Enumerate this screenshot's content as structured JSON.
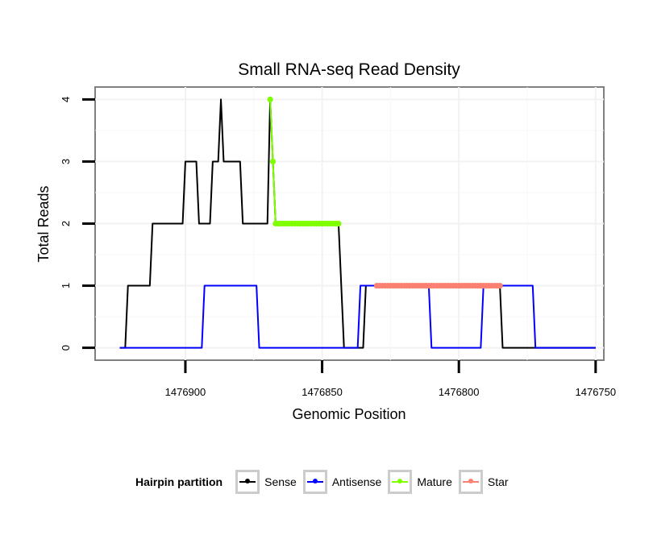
{
  "chart_data": {
    "type": "line",
    "title": "Small RNA-seq Read Density",
    "xlabel": "Genomic Position",
    "ylabel": "Total Reads",
    "xlim": [
      1476933,
      1476747
    ],
    "ylim": [
      -0.2,
      4.2
    ],
    "x_reversed": true,
    "x_ticks": [
      1476900,
      1476850,
      1476800,
      1476750
    ],
    "x_tick_labels": [
      "1476900",
      "1476850",
      "1476800",
      "1476750"
    ],
    "y_ticks": [
      0,
      1,
      2,
      3,
      4
    ],
    "y_tick_labels": [
      "0",
      "1",
      "2",
      "3",
      "4"
    ],
    "grid": true,
    "legend_position": "bottom",
    "legend_title": "Hairpin partition",
    "series": [
      {
        "name": "Sense",
        "color": "#000000",
        "style": "line",
        "points": [
          [
            1476924,
            0
          ],
          [
            1476922,
            0
          ],
          [
            1476921,
            1
          ],
          [
            1476913,
            1
          ],
          [
            1476912,
            2
          ],
          [
            1476901,
            2
          ],
          [
            1476900,
            3
          ],
          [
            1476896,
            3
          ],
          [
            1476895,
            2
          ],
          [
            1476891,
            2
          ],
          [
            1476890,
            3
          ],
          [
            1476888,
            3
          ],
          [
            1476887,
            4
          ],
          [
            1476886,
            3
          ],
          [
            1476880,
            3
          ],
          [
            1476879,
            2
          ],
          [
            1476870,
            2
          ],
          [
            1476869,
            4
          ],
          [
            1476868,
            3
          ],
          [
            1476867,
            2
          ],
          [
            1476844,
            2
          ],
          [
            1476842,
            0
          ],
          [
            1476835,
            0
          ],
          [
            1476834,
            1
          ],
          [
            1476831,
            1
          ],
          [
            1476830,
            1
          ],
          [
            1476785,
            1
          ],
          [
            1476784,
            0
          ],
          [
            1476750,
            0
          ]
        ]
      },
      {
        "name": "Antisense",
        "color": "#0000ff",
        "style": "line",
        "points": [
          [
            1476924,
            0
          ],
          [
            1476894,
            0
          ],
          [
            1476893,
            1
          ],
          [
            1476874,
            1
          ],
          [
            1476873,
            0
          ],
          [
            1476845,
            0
          ],
          [
            1476837,
            0
          ],
          [
            1476836,
            1
          ],
          [
            1476833,
            1
          ],
          [
            1476832,
            1
          ],
          [
            1476811,
            1
          ],
          [
            1476810,
            0
          ],
          [
            1476792,
            0
          ],
          [
            1476791,
            1
          ],
          [
            1476773,
            1
          ],
          [
            1476772,
            0
          ],
          [
            1476750,
            0
          ]
        ]
      },
      {
        "name": "Mature",
        "color": "#7fff00",
        "style": "line-points",
        "points": [
          [
            1476869,
            4
          ],
          [
            1476868,
            3
          ],
          [
            1476867,
            2
          ],
          [
            1476866,
            2
          ],
          [
            1476865,
            2
          ],
          [
            1476864,
            2
          ],
          [
            1476863,
            2
          ],
          [
            1476862,
            2
          ],
          [
            1476861,
            2
          ],
          [
            1476860,
            2
          ],
          [
            1476859,
            2
          ],
          [
            1476858,
            2
          ],
          [
            1476857,
            2
          ],
          [
            1476856,
            2
          ],
          [
            1476855,
            2
          ],
          [
            1476854,
            2
          ],
          [
            1476853,
            2
          ],
          [
            1476852,
            2
          ],
          [
            1476851,
            2
          ],
          [
            1476850,
            2
          ],
          [
            1476849,
            2
          ],
          [
            1476848,
            2
          ],
          [
            1476847,
            2
          ],
          [
            1476846,
            2
          ],
          [
            1476845,
            2
          ],
          [
            1476844,
            2
          ]
        ]
      },
      {
        "name": "Star",
        "color": "#fa8072",
        "style": "line-points",
        "points": [
          [
            1476830,
            1
          ],
          [
            1476829,
            1
          ],
          [
            1476828,
            1
          ],
          [
            1476827,
            1
          ],
          [
            1476826,
            1
          ],
          [
            1476825,
            1
          ],
          [
            1476824,
            1
          ],
          [
            1476823,
            1
          ],
          [
            1476822,
            1
          ],
          [
            1476821,
            1
          ],
          [
            1476820,
            1
          ],
          [
            1476819,
            1
          ],
          [
            1476818,
            1
          ],
          [
            1476817,
            1
          ],
          [
            1476816,
            1
          ],
          [
            1476815,
            1
          ],
          [
            1476814,
            1
          ],
          [
            1476813,
            1
          ],
          [
            1476812,
            1
          ],
          [
            1476811,
            1
          ],
          [
            1476810,
            1
          ],
          [
            1476809,
            1
          ],
          [
            1476808,
            1
          ],
          [
            1476807,
            1
          ],
          [
            1476806,
            1
          ],
          [
            1476805,
            1
          ],
          [
            1476804,
            1
          ],
          [
            1476803,
            1
          ],
          [
            1476802,
            1
          ],
          [
            1476801,
            1
          ],
          [
            1476800,
            1
          ],
          [
            1476799,
            1
          ],
          [
            1476798,
            1
          ],
          [
            1476797,
            1
          ],
          [
            1476796,
            1
          ],
          [
            1476795,
            1
          ],
          [
            1476794,
            1
          ],
          [
            1476793,
            1
          ],
          [
            1476792,
            1
          ],
          [
            1476791,
            1
          ],
          [
            1476790,
            1
          ],
          [
            1476789,
            1
          ],
          [
            1476788,
            1
          ],
          [
            1476787,
            1
          ],
          [
            1476786,
            1
          ],
          [
            1476785,
            1
          ]
        ]
      }
    ]
  },
  "legend": {
    "title": "Hairpin partition",
    "items": [
      {
        "label": "Sense",
        "color": "#000000"
      },
      {
        "label": "Antisense",
        "color": "#0000ff"
      },
      {
        "label": "Mature",
        "color": "#7fff00"
      },
      {
        "label": "Star",
        "color": "#fa8072"
      }
    ]
  }
}
